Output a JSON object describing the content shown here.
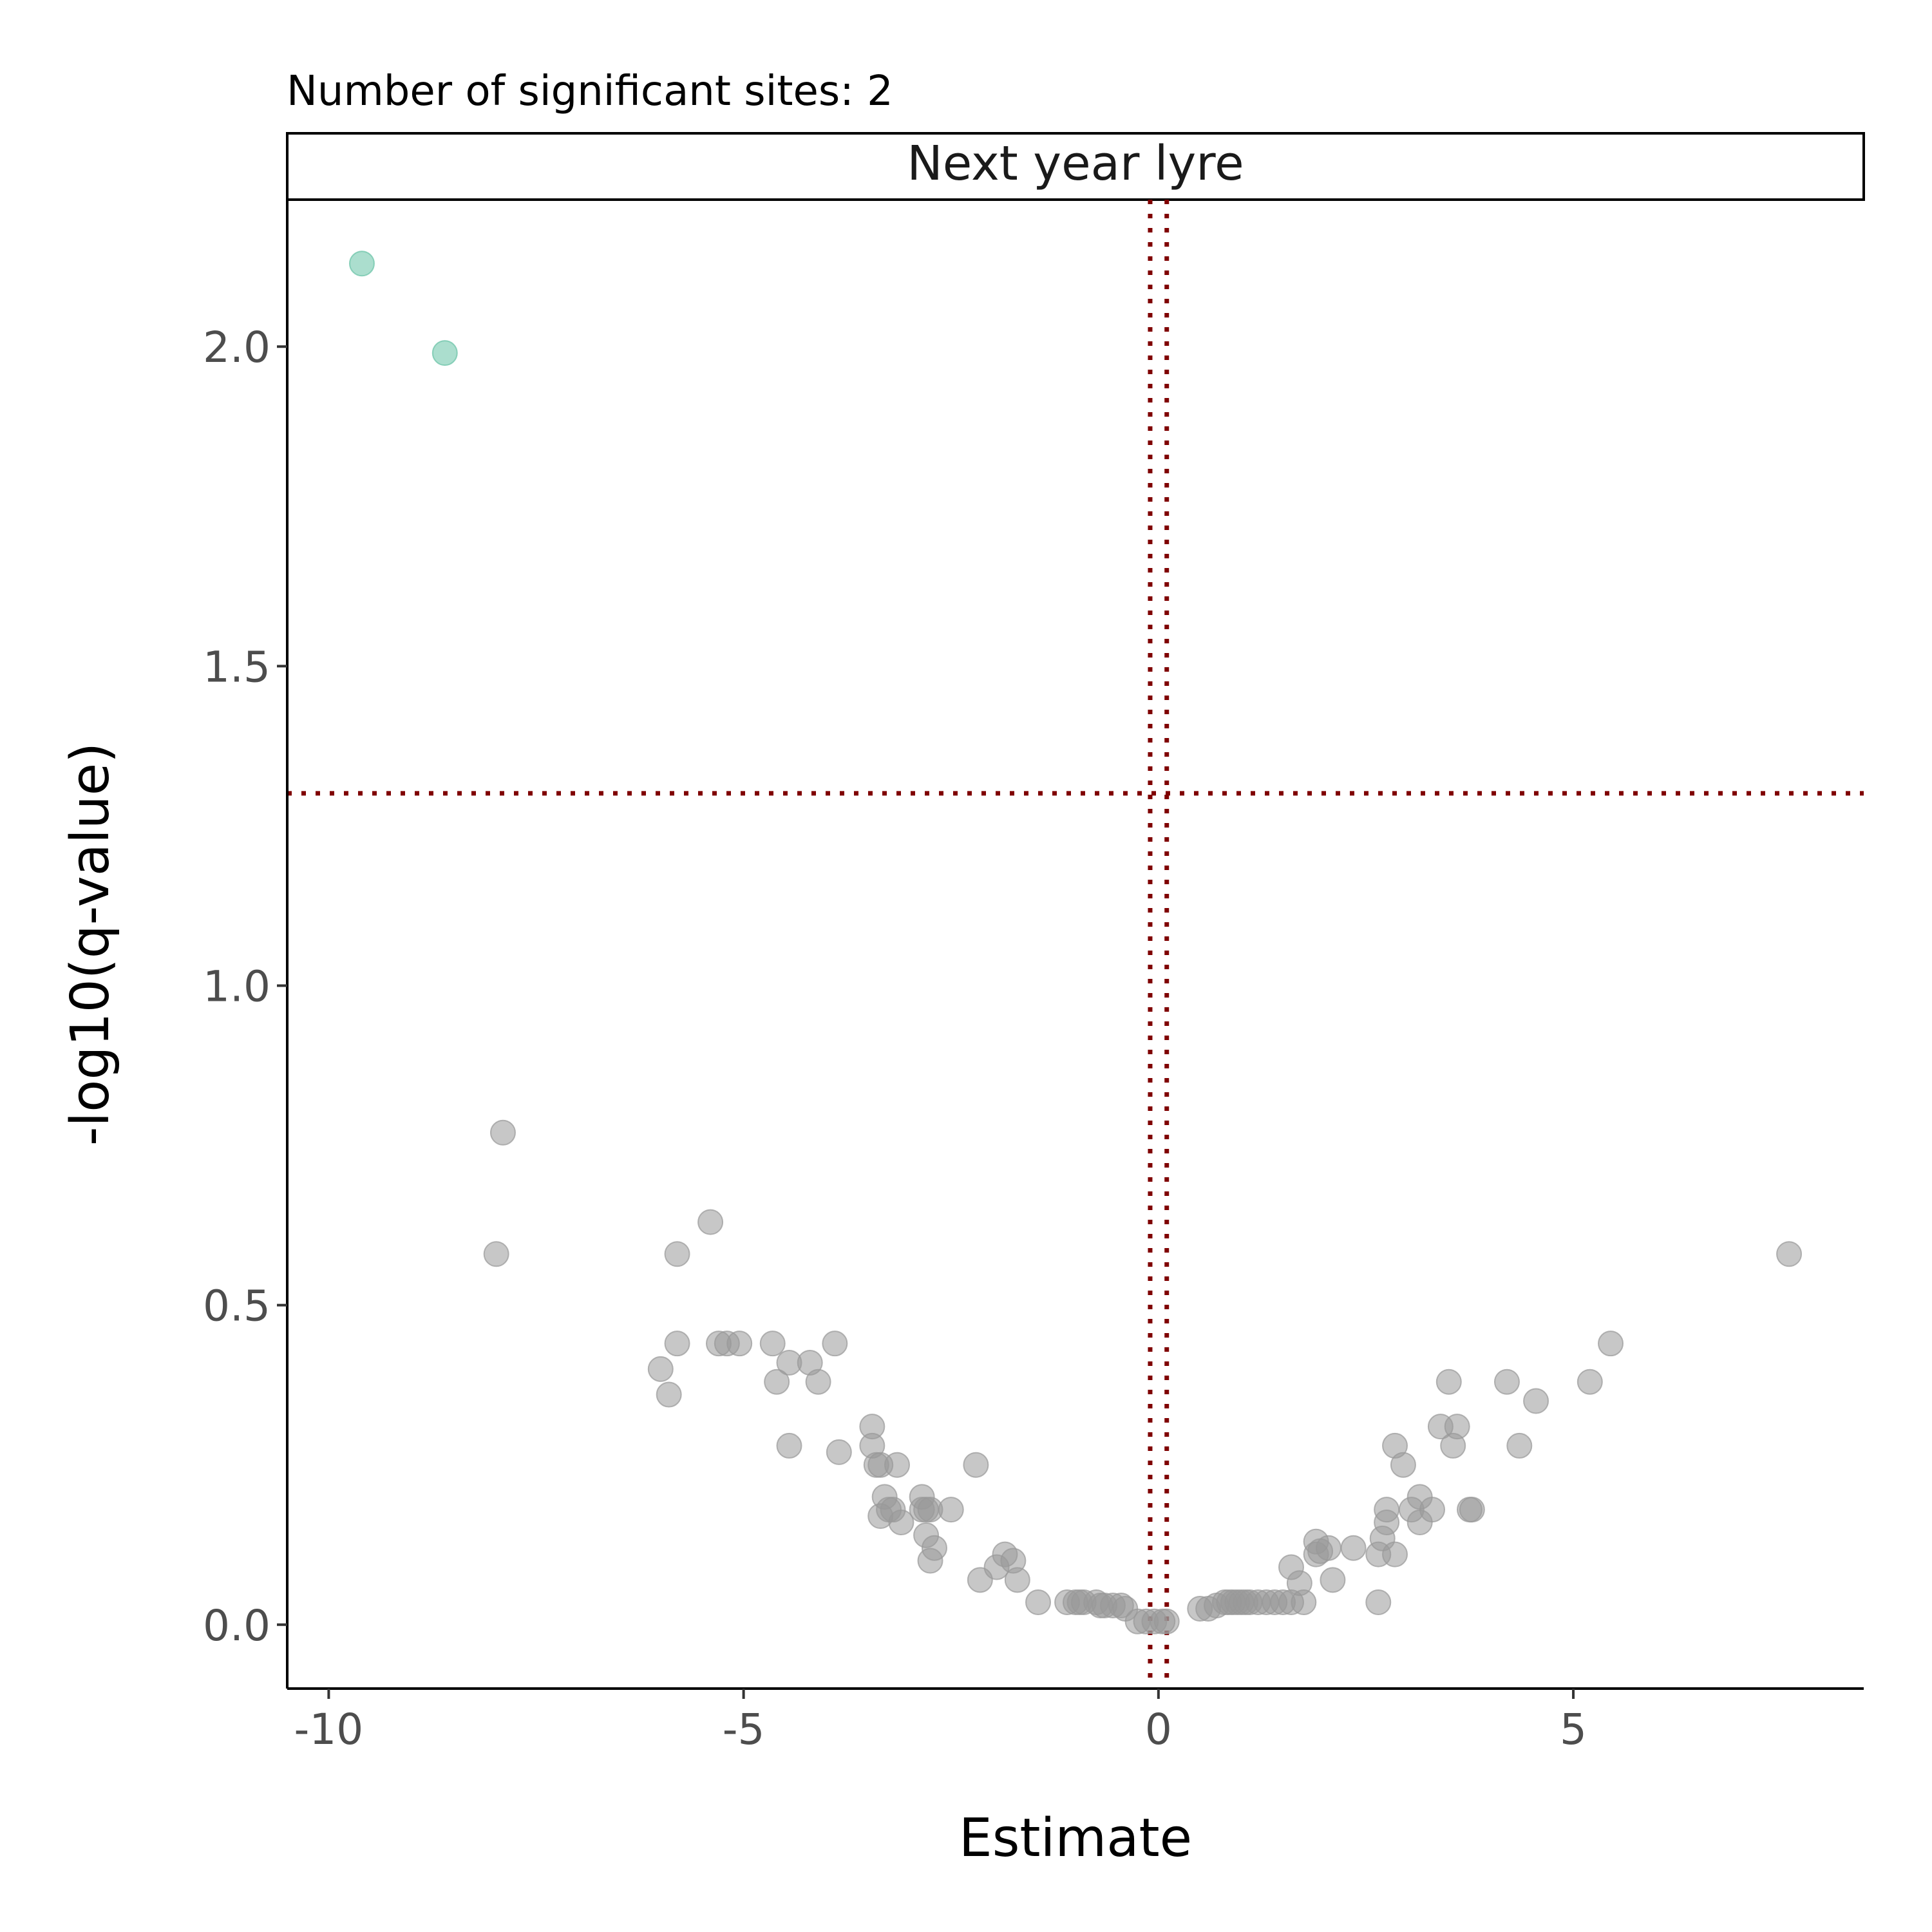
{
  "chart_data": {
    "type": "scatter",
    "subtitle": "Number of significant sites: 2",
    "facet_label": "Next year lyre",
    "xlabel": "Estimate",
    "ylabel": "-log10(q-value)",
    "xlim": [
      -10.5,
      8.5
    ],
    "ylim": [
      -0.1,
      2.23
    ],
    "x_ticks": [
      -10,
      -5,
      0,
      5
    ],
    "x_tick_labels": [
      "-10",
      "-5",
      "0",
      "5"
    ],
    "y_ticks": [
      0.0,
      0.5,
      1.0,
      1.5,
      2.0
    ],
    "y_tick_labels": [
      "0.0",
      "0.5",
      "1.0",
      "1.5",
      "2.0"
    ],
    "grid": false,
    "reference_lines": {
      "vertical_x": [
        -0.1,
        0.1
      ],
      "horizontal_y": 1.301,
      "color": "#7f0000",
      "style": "dotted"
    },
    "colors": {
      "significant": "#66c2a5",
      "not_significant": "#999999"
    },
    "series": [
      {
        "category": "significant",
        "points": [
          [
            -9.6,
            2.13
          ],
          [
            -8.6,
            1.99
          ]
        ]
      },
      {
        "category": "not_significant",
        "points": [
          [
            -7.9,
            0.77
          ],
          [
            -7.98,
            0.58
          ],
          [
            -5.4,
            0.63
          ],
          [
            -5.8,
            0.58
          ],
          [
            -5.8,
            0.44
          ],
          [
            -6.0,
            0.4
          ],
          [
            -5.9,
            0.36
          ],
          [
            -5.3,
            0.44
          ],
          [
            -5.2,
            0.44
          ],
          [
            -5.05,
            0.44
          ],
          [
            -4.65,
            0.44
          ],
          [
            -4.6,
            0.38
          ],
          [
            -4.45,
            0.41
          ],
          [
            -4.45,
            0.28
          ],
          [
            -4.2,
            0.41
          ],
          [
            -4.1,
            0.38
          ],
          [
            -3.9,
            0.44
          ],
          [
            -3.85,
            0.27
          ],
          [
            -3.45,
            0.31
          ],
          [
            -3.45,
            0.28
          ],
          [
            -3.4,
            0.25
          ],
          [
            -3.35,
            0.25
          ],
          [
            -3.15,
            0.25
          ],
          [
            -3.3,
            0.2
          ],
          [
            -3.25,
            0.18
          ],
          [
            -3.2,
            0.18
          ],
          [
            -3.35,
            0.17
          ],
          [
            -3.1,
            0.16
          ],
          [
            -2.85,
            0.2
          ],
          [
            -2.85,
            0.18
          ],
          [
            -2.8,
            0.18
          ],
          [
            -2.75,
            0.18
          ],
          [
            -2.5,
            0.18
          ],
          [
            -2.8,
            0.14
          ],
          [
            -2.7,
            0.12
          ],
          [
            -2.75,
            0.1
          ],
          [
            -2.2,
            0.25
          ],
          [
            -2.15,
            0.07
          ],
          [
            -1.95,
            0.09
          ],
          [
            -1.85,
            0.11
          ],
          [
            -1.75,
            0.1
          ],
          [
            -1.7,
            0.07
          ],
          [
            -1.45,
            0.035
          ],
          [
            -1.1,
            0.035
          ],
          [
            -1.0,
            0.035
          ],
          [
            -0.95,
            0.035
          ],
          [
            -0.9,
            0.035
          ],
          [
            -0.75,
            0.035
          ],
          [
            -0.7,
            0.03
          ],
          [
            -0.65,
            0.03
          ],
          [
            -0.55,
            0.03
          ],
          [
            -0.45,
            0.03
          ],
          [
            -0.4,
            0.025
          ],
          [
            -0.25,
            0.005
          ],
          [
            -0.15,
            0.005
          ],
          [
            -0.05,
            0.005
          ],
          [
            0.05,
            0.005
          ],
          [
            0.1,
            0.005
          ],
          [
            0.5,
            0.025
          ],
          [
            0.6,
            0.025
          ],
          [
            0.7,
            0.03
          ],
          [
            0.8,
            0.035
          ],
          [
            0.85,
            0.035
          ],
          [
            0.9,
            0.035
          ],
          [
            0.95,
            0.035
          ],
          [
            1.0,
            0.035
          ],
          [
            1.05,
            0.035
          ],
          [
            1.1,
            0.035
          ],
          [
            1.2,
            0.035
          ],
          [
            1.3,
            0.035
          ],
          [
            1.4,
            0.035
          ],
          [
            1.5,
            0.035
          ],
          [
            1.6,
            0.035
          ],
          [
            1.75,
            0.035
          ],
          [
            1.6,
            0.09
          ],
          [
            1.7,
            0.065
          ],
          [
            1.9,
            0.13
          ],
          [
            1.9,
            0.11
          ],
          [
            1.95,
            0.115
          ],
          [
            2.05,
            0.12
          ],
          [
            2.1,
            0.07
          ],
          [
            2.35,
            0.12
          ],
          [
            2.65,
            0.035
          ],
          [
            2.65,
            0.11
          ],
          [
            2.7,
            0.135
          ],
          [
            2.75,
            0.16
          ],
          [
            2.75,
            0.18
          ],
          [
            2.85,
            0.11
          ],
          [
            2.85,
            0.28
          ],
          [
            2.95,
            0.25
          ],
          [
            3.05,
            0.18
          ],
          [
            3.15,
            0.2
          ],
          [
            3.15,
            0.16
          ],
          [
            3.3,
            0.18
          ],
          [
            3.4,
            0.31
          ],
          [
            3.5,
            0.38
          ],
          [
            3.55,
            0.28
          ],
          [
            3.6,
            0.31
          ],
          [
            3.75,
            0.18
          ],
          [
            3.78,
            0.18
          ],
          [
            4.2,
            0.38
          ],
          [
            4.35,
            0.28
          ],
          [
            4.55,
            0.35
          ],
          [
            5.2,
            0.38
          ],
          [
            5.45,
            0.44
          ],
          [
            7.6,
            0.58
          ]
        ]
      }
    ]
  }
}
